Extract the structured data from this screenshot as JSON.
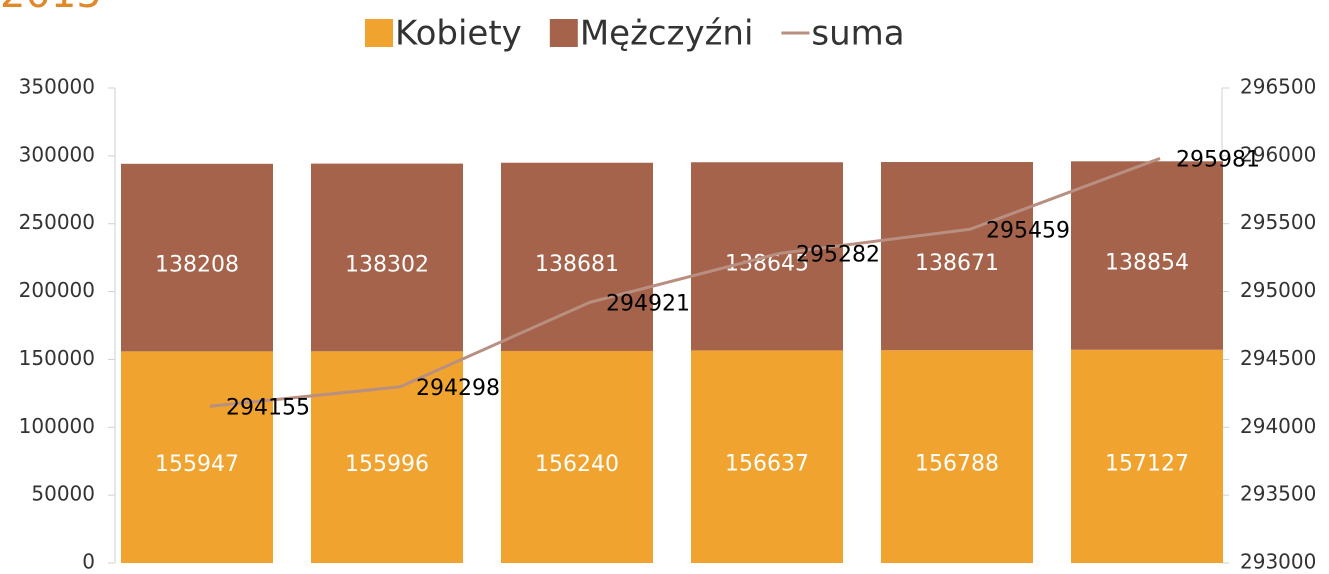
{
  "chart_data": {
    "type": "bar",
    "title": "2015",
    "categories": [
      null,
      null,
      null,
      null,
      null,
      null
    ],
    "series": [
      {
        "name": "Kobiety",
        "color": "#f0a32f",
        "values": [
          155947,
          155996,
          156240,
          156637,
          156788,
          157127
        ]
      },
      {
        "name": "Mężczyźni",
        "color": "#a5634b",
        "values": [
          138208,
          138302,
          138681,
          138645,
          138671,
          138854
        ]
      },
      {
        "name": "suma",
        "color": "#b88f80",
        "type": "line",
        "axis": "y2",
        "values": [
          294155,
          294298,
          294921,
          295282,
          295459,
          295981
        ]
      }
    ],
    "stacked": true,
    "ylim": [
      0,
      350000
    ],
    "yticks": [
      0,
      50000,
      100000,
      150000,
      200000,
      250000,
      300000,
      350000
    ],
    "y2lim": [
      293000,
      296500
    ],
    "y2ticks": [
      293000,
      293500,
      294000,
      294500,
      295000,
      295500,
      296000,
      296500
    ],
    "legend": "top"
  }
}
